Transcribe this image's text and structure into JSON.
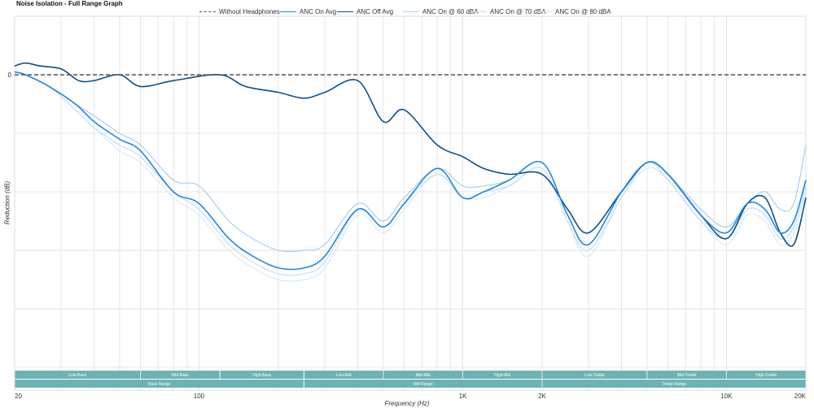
{
  "chart_data": {
    "type": "line",
    "title": "Noise Isolation - Full Range Graph",
    "xlabel": "Frequency (Hz)",
    "ylabel": "Reduction (dB)",
    "x_scale": "log",
    "xlim": [
      20,
      20000
    ],
    "ylim": [
      -50,
      10
    ],
    "grid": true,
    "legend_position": "top",
    "x_tick_labels": [
      {
        "value": 20,
        "label": "20"
      },
      {
        "value": 100,
        "label": "100"
      },
      {
        "value": 1000,
        "label": "1K"
      },
      {
        "value": 2000,
        "label": "2K"
      },
      {
        "value": 10000,
        "label": "10K"
      },
      {
        "value": 20000,
        "label": "20K"
      }
    ],
    "y_tick_labels": [
      {
        "value": 0,
        "label": "0"
      }
    ],
    "series": [
      {
        "name": "Without Headphones",
        "color": "#555555",
        "style": "dashed",
        "points": [
          [
            20,
            0
          ],
          [
            20000,
            0
          ]
        ]
      },
      {
        "name": "ANC On Avg",
        "color": "#1e88e5",
        "style": "solid",
        "points": [
          [
            20,
            0.5
          ],
          [
            22,
            0
          ],
          [
            27,
            -2
          ],
          [
            34,
            -5
          ],
          [
            40,
            -8
          ],
          [
            50,
            -11
          ],
          [
            60,
            -13
          ],
          [
            80,
            -20
          ],
          [
            100,
            -22
          ],
          [
            130,
            -28
          ],
          [
            160,
            -31
          ],
          [
            200,
            -33
          ],
          [
            250,
            -33
          ],
          [
            300,
            -31
          ],
          [
            400,
            -23
          ],
          [
            500,
            -26
          ],
          [
            600,
            -22
          ],
          [
            800,
            -16
          ],
          [
            1000,
            -21
          ],
          [
            1200,
            -20
          ],
          [
            1500,
            -18
          ],
          [
            2000,
            -15
          ],
          [
            2500,
            -24
          ],
          [
            3000,
            -29
          ],
          [
            4000,
            -20
          ],
          [
            5000,
            -15
          ],
          [
            6000,
            -17
          ],
          [
            8000,
            -24
          ],
          [
            10000,
            -27
          ],
          [
            12000,
            -22
          ],
          [
            14000,
            -23
          ],
          [
            16000,
            -27
          ],
          [
            18000,
            -25
          ],
          [
            20000,
            -18
          ]
        ]
      },
      {
        "name": "ANC Off Avg",
        "color": "#0d4f86",
        "style": "solid",
        "points": [
          [
            20,
            1.5
          ],
          [
            22,
            2
          ],
          [
            25,
            1.5
          ],
          [
            30,
            1
          ],
          [
            35,
            -1
          ],
          [
            40,
            -1
          ],
          [
            50,
            0
          ],
          [
            60,
            -2
          ],
          [
            80,
            -1
          ],
          [
            120,
            0
          ],
          [
            150,
            -2
          ],
          [
            200,
            -3
          ],
          [
            250,
            -4
          ],
          [
            300,
            -3
          ],
          [
            400,
            -1
          ],
          [
            500,
            -8
          ],
          [
            600,
            -6
          ],
          [
            800,
            -12
          ],
          [
            1000,
            -14
          ],
          [
            1200,
            -16
          ],
          [
            1500,
            -17
          ],
          [
            2000,
            -17
          ],
          [
            2500,
            -23
          ],
          [
            3000,
            -27
          ],
          [
            4000,
            -20
          ],
          [
            5000,
            -15
          ],
          [
            6000,
            -17
          ],
          [
            8000,
            -24
          ],
          [
            10000,
            -28
          ],
          [
            12000,
            -22
          ],
          [
            14000,
            -21
          ],
          [
            16000,
            -27
          ],
          [
            18000,
            -29
          ],
          [
            20000,
            -21
          ]
        ]
      },
      {
        "name": "ANC On @ 60 dBA",
        "color": "#a9cff0",
        "style": "solid",
        "points": [
          [
            20,
            0.5
          ],
          [
            22,
            0
          ],
          [
            27,
            -2
          ],
          [
            34,
            -5
          ],
          [
            40,
            -7
          ],
          [
            50,
            -10
          ],
          [
            60,
            -12
          ],
          [
            80,
            -18
          ],
          [
            100,
            -19
          ],
          [
            130,
            -25
          ],
          [
            160,
            -28
          ],
          [
            200,
            -30
          ],
          [
            250,
            -30
          ],
          [
            300,
            -29
          ],
          [
            400,
            -22
          ],
          [
            500,
            -25
          ],
          [
            600,
            -21
          ],
          [
            800,
            -16
          ],
          [
            1000,
            -19
          ],
          [
            1200,
            -19
          ],
          [
            1500,
            -18
          ],
          [
            2000,
            -15
          ],
          [
            2500,
            -24
          ],
          [
            3000,
            -29
          ],
          [
            4000,
            -20
          ],
          [
            5000,
            -15
          ],
          [
            6000,
            -17
          ],
          [
            8000,
            -23
          ],
          [
            10000,
            -26
          ],
          [
            12000,
            -22
          ],
          [
            14000,
            -20
          ],
          [
            16000,
            -23
          ],
          [
            18000,
            -22
          ],
          [
            20000,
            -12
          ]
        ]
      },
      {
        "name": "ANC On @ 70 dBA",
        "color": "#c3def5",
        "style": "solid",
        "points": [
          [
            20,
            0.5
          ],
          [
            22,
            0
          ],
          [
            27,
            -2
          ],
          [
            34,
            -6
          ],
          [
            40,
            -9
          ],
          [
            50,
            -12
          ],
          [
            60,
            -14
          ],
          [
            80,
            -20
          ],
          [
            100,
            -23
          ],
          [
            130,
            -29
          ],
          [
            160,
            -32
          ],
          [
            200,
            -34
          ],
          [
            250,
            -34
          ],
          [
            300,
            -32
          ],
          [
            400,
            -23
          ],
          [
            500,
            -26
          ],
          [
            600,
            -22
          ],
          [
            800,
            -17
          ],
          [
            1000,
            -21
          ],
          [
            1200,
            -20
          ],
          [
            1500,
            -19
          ],
          [
            2000,
            -16
          ],
          [
            2500,
            -25
          ],
          [
            3000,
            -30
          ],
          [
            4000,
            -21
          ],
          [
            5000,
            -15
          ],
          [
            6000,
            -18
          ],
          [
            8000,
            -25
          ],
          [
            10000,
            -28
          ],
          [
            12000,
            -23
          ],
          [
            14000,
            -24
          ],
          [
            16000,
            -28
          ],
          [
            18000,
            -26
          ],
          [
            20000,
            -19
          ]
        ]
      },
      {
        "name": "ANC On @ 80 dBA",
        "color": "#d8eaf8",
        "style": "solid",
        "points": [
          [
            20,
            0.5
          ],
          [
            22,
            0
          ],
          [
            27,
            -2
          ],
          [
            34,
            -6
          ],
          [
            40,
            -9
          ],
          [
            50,
            -13
          ],
          [
            60,
            -15
          ],
          [
            80,
            -21
          ],
          [
            100,
            -24
          ],
          [
            130,
            -30
          ],
          [
            160,
            -33
          ],
          [
            200,
            -35
          ],
          [
            250,
            -35
          ],
          [
            300,
            -33
          ],
          [
            400,
            -24
          ],
          [
            500,
            -27
          ],
          [
            600,
            -23
          ],
          [
            800,
            -17
          ],
          [
            1000,
            -21
          ],
          [
            1200,
            -21
          ],
          [
            1500,
            -19
          ],
          [
            2000,
            -16
          ],
          [
            2500,
            -25
          ],
          [
            3000,
            -31
          ],
          [
            4000,
            -21
          ],
          [
            5000,
            -16
          ],
          [
            6000,
            -18
          ],
          [
            8000,
            -25
          ],
          [
            10000,
            -29
          ],
          [
            12000,
            -24
          ],
          [
            14000,
            -25
          ],
          [
            16000,
            -29
          ],
          [
            18000,
            -27
          ],
          [
            20000,
            -20
          ]
        ]
      }
    ],
    "range_bands": {
      "row1": [
        {
          "label": "Low-Bass",
          "from": 20,
          "to": 60
        },
        {
          "label": "Mid-Bass",
          "from": 60,
          "to": 120
        },
        {
          "label": "High-Bass",
          "from": 120,
          "to": 250
        },
        {
          "label": "Low-Mid",
          "from": 250,
          "to": 500
        },
        {
          "label": "Mid-Mid",
          "from": 500,
          "to": 1000
        },
        {
          "label": "High-Mid",
          "from": 1000,
          "to": 2000
        },
        {
          "label": "Low-Treble",
          "from": 2000,
          "to": 5000
        },
        {
          "label": "Mid-Treble",
          "from": 5000,
          "to": 10000
        },
        {
          "label": "High-Treble",
          "from": 10000,
          "to": 20000
        }
      ],
      "row2": [
        {
          "label": "Bass Range",
          "from": 20,
          "to": 250
        },
        {
          "label": "Mid Range",
          "from": 250,
          "to": 2000
        },
        {
          "label": "Treble Range",
          "from": 2000,
          "to": 20000
        }
      ],
      "color": "#6db3b3"
    }
  }
}
